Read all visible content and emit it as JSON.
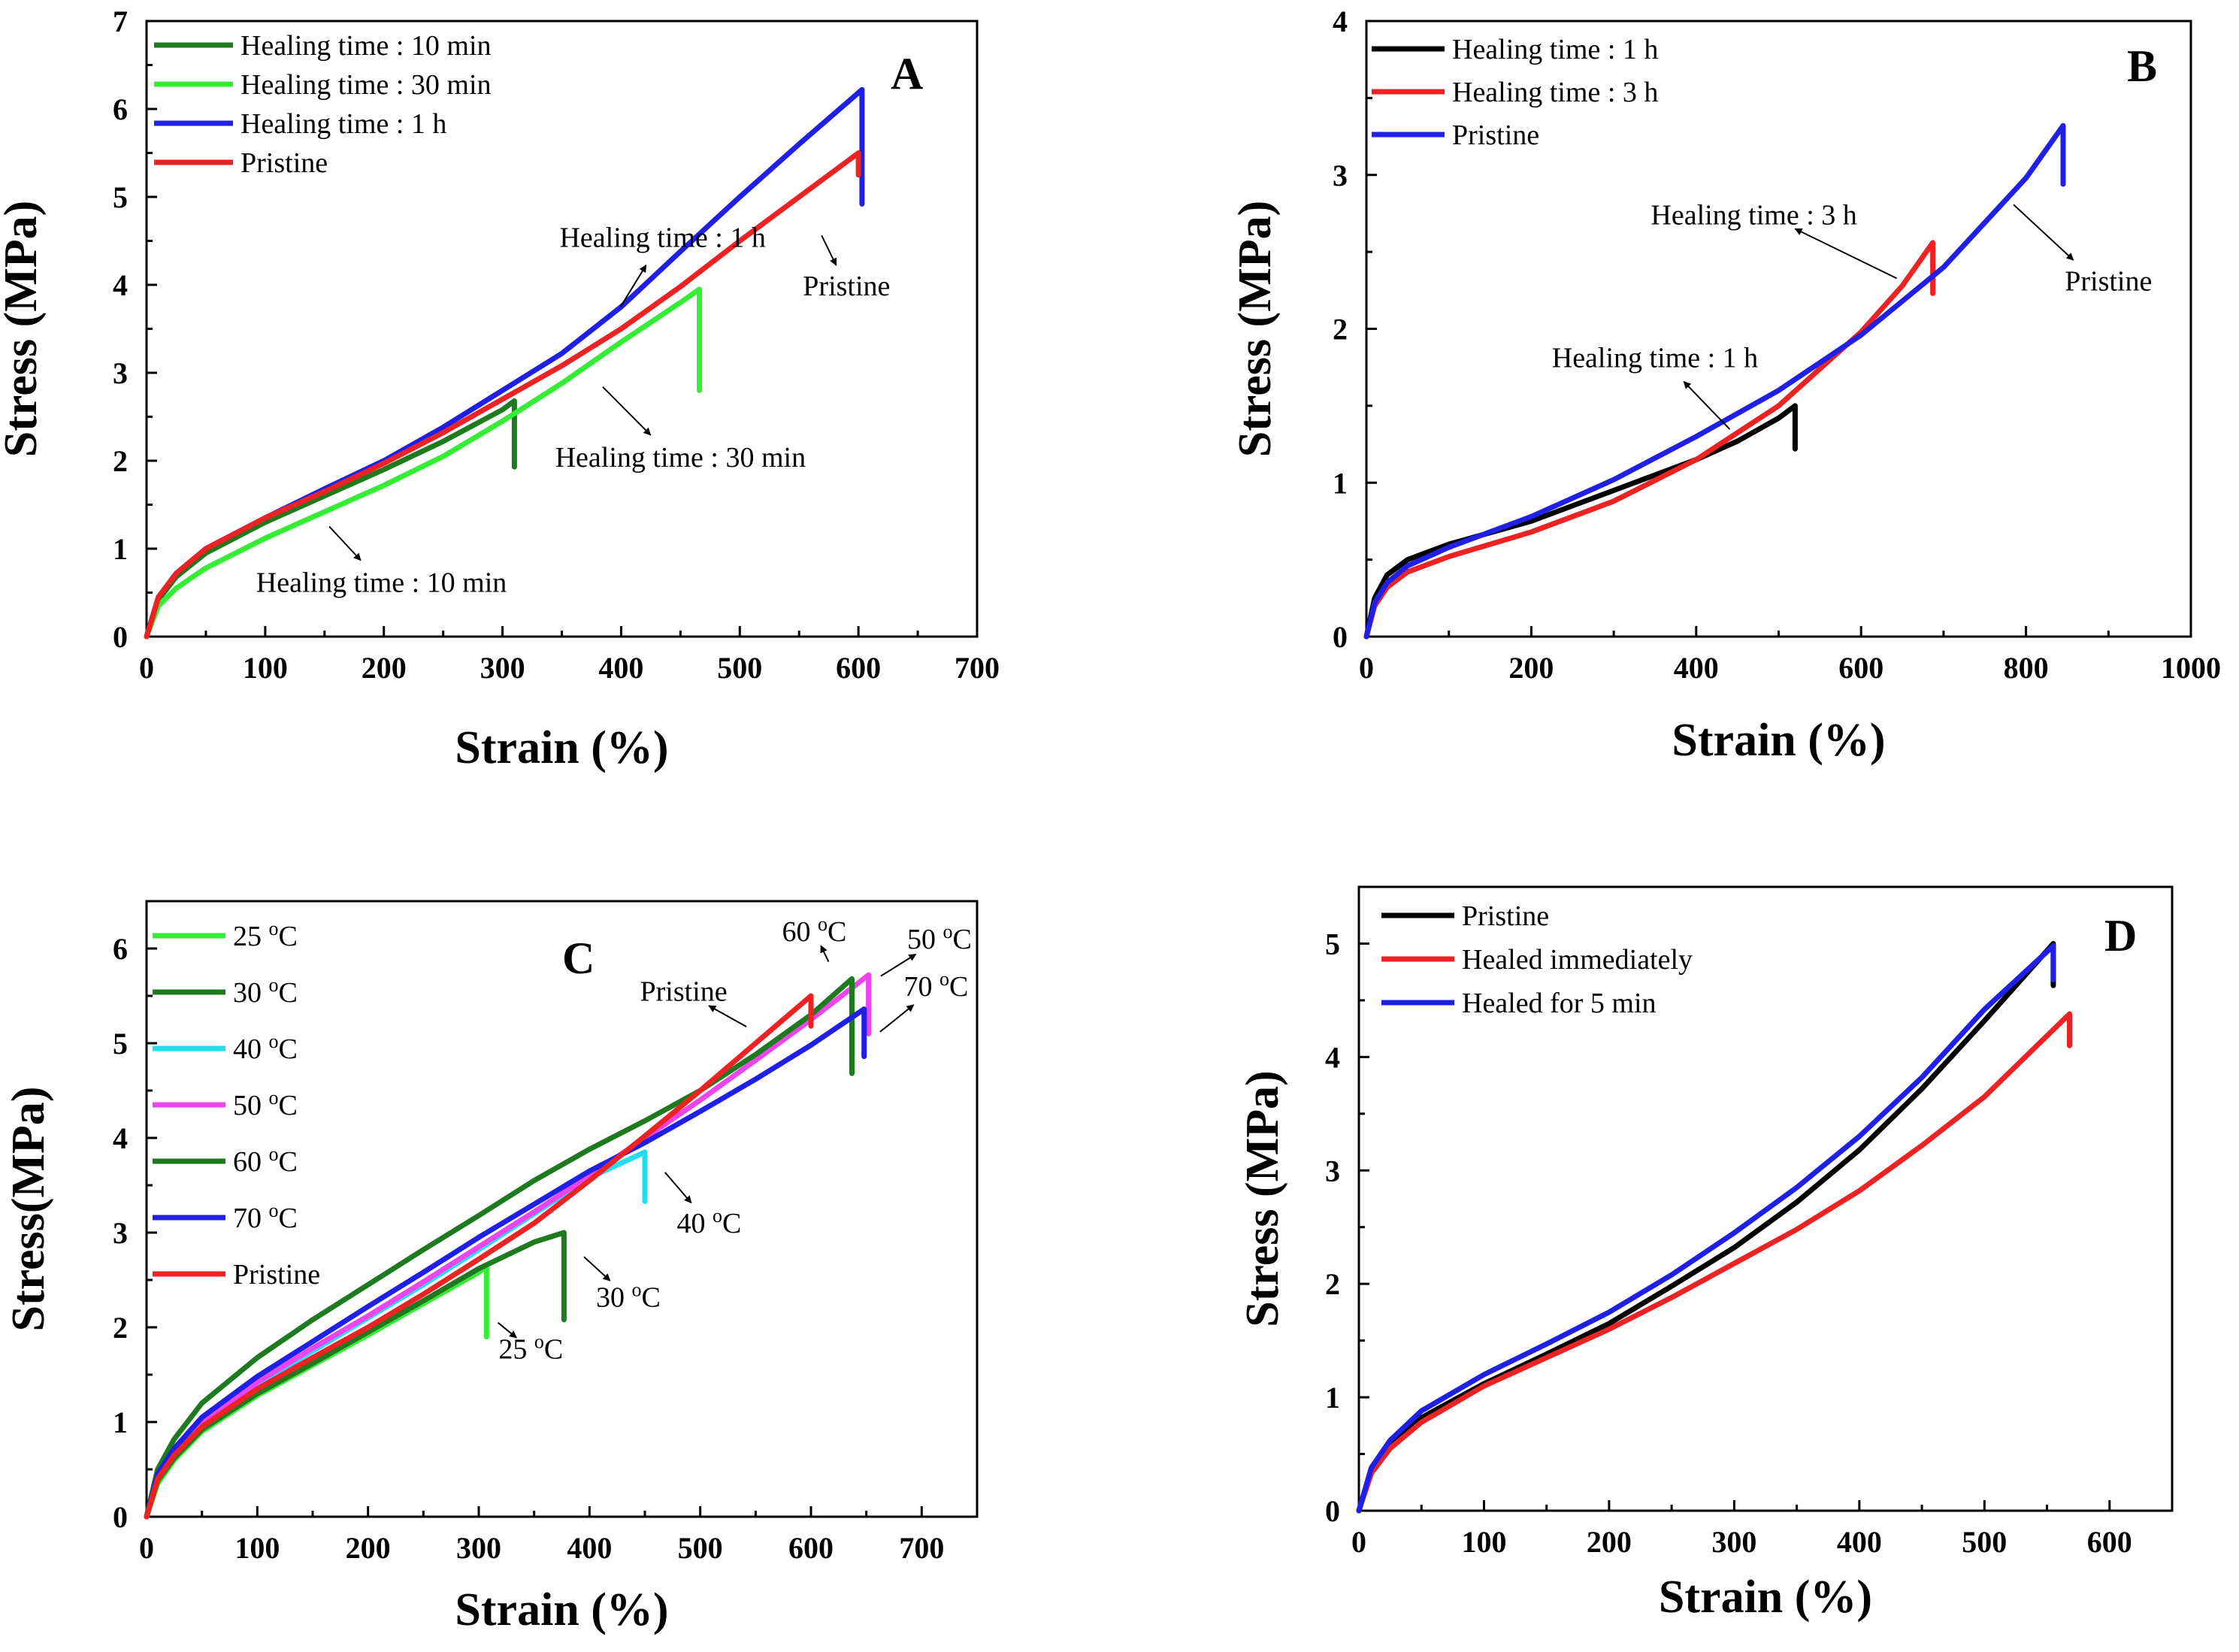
{
  "chart_data": [
    {
      "type": "line",
      "panel": "A",
      "xlabel": "Strain (%)",
      "ylabel": "Stress (MPa)",
      "xlim": [
        0,
        700
      ],
      "ylim": [
        0,
        7
      ],
      "xticks": [
        0,
        100,
        200,
        300,
        400,
        500,
        600,
        700
      ],
      "yticks": [
        0,
        1,
        2,
        3,
        4,
        5,
        6,
        7
      ],
      "legend_position": "top-left",
      "series": [
        {
          "name": "Healing time : 10 min",
          "color": "#1e7a1e",
          "break_drop": 0.75,
          "x": [
            0,
            10,
            25,
            50,
            100,
            150,
            200,
            250,
            300,
            310
          ],
          "y": [
            0,
            0.42,
            0.68,
            0.95,
            1.3,
            1.6,
            1.9,
            2.22,
            2.58,
            2.68
          ]
        },
        {
          "name": "Healing time : 30 min",
          "color": "#33ee33",
          "break_drop": 1.15,
          "x": [
            0,
            10,
            25,
            50,
            100,
            150,
            200,
            250,
            300,
            350,
            400,
            450,
            466
          ],
          "y": [
            0,
            0.35,
            0.55,
            0.78,
            1.12,
            1.42,
            1.72,
            2.05,
            2.45,
            2.88,
            3.35,
            3.8,
            3.95
          ]
        },
        {
          "name": "Healing time : 1 h",
          "color": "#1f1fe8",
          "break_drop": 1.3,
          "x": [
            0,
            10,
            25,
            50,
            100,
            150,
            200,
            250,
            300,
            350,
            400,
            450,
            500,
            550,
            603
          ],
          "y": [
            0,
            0.45,
            0.72,
            1.0,
            1.35,
            1.68,
            2.0,
            2.38,
            2.8,
            3.22,
            3.75,
            4.38,
            5.0,
            5.6,
            6.22
          ]
        },
        {
          "name": "Pristine",
          "color": "#ee2222",
          "break_drop": 0.25,
          "x": [
            0,
            10,
            25,
            50,
            100,
            150,
            200,
            250,
            300,
            350,
            400,
            450,
            500,
            550,
            600
          ],
          "y": [
            0,
            0.45,
            0.72,
            1.0,
            1.35,
            1.65,
            1.97,
            2.32,
            2.7,
            3.08,
            3.5,
            3.98,
            4.5,
            5.0,
            5.5
          ]
        }
      ],
      "annotations": [
        {
          "text": "Healing time : 1 h",
          "x": 435,
          "y": 4.43,
          "points_to": [
            395,
            3.65
          ]
        },
        {
          "text": "Pristine",
          "x": 590,
          "y": 3.88,
          "points_to": [
            565,
            4.67
          ]
        },
        {
          "text": "Healing time : 30 min",
          "x": 450,
          "y": 1.93,
          "points_to": [
            378,
            2.92
          ]
        },
        {
          "text": "Healing time : 10 min",
          "x": 198,
          "y": 0.51,
          "points_to": [
            148,
            1.34
          ]
        }
      ]
    },
    {
      "type": "line",
      "panel": "B",
      "xlabel": "Strain (%)",
      "ylabel": "Stress (MPa)",
      "xlim": [
        0,
        1000
      ],
      "ylim": [
        0,
        4
      ],
      "xticks": [
        0,
        200,
        400,
        600,
        800,
        1000
      ],
      "yticks": [
        0,
        1,
        2,
        3,
        4
      ],
      "legend_position": "top-left",
      "series": [
        {
          "name": "Healing time : 1 h",
          "color": "#000000",
          "break_drop": 0.28,
          "x": [
            0,
            10,
            25,
            50,
            100,
            200,
            300,
            400,
            450,
            500,
            520
          ],
          "y": [
            0,
            0.25,
            0.4,
            0.5,
            0.6,
            0.75,
            0.95,
            1.15,
            1.27,
            1.42,
            1.5
          ]
        },
        {
          "name": "Healing time : 3 h",
          "color": "#ee2222",
          "break_drop": 0.33,
          "x": [
            0,
            10,
            25,
            50,
            100,
            200,
            300,
            400,
            500,
            600,
            650,
            687
          ],
          "y": [
            0,
            0.2,
            0.32,
            0.42,
            0.52,
            0.68,
            0.88,
            1.15,
            1.5,
            1.98,
            2.28,
            2.56
          ]
        },
        {
          "name": "Pristine",
          "color": "#1f1fe8",
          "break_drop": 0.38,
          "x": [
            0,
            10,
            25,
            50,
            100,
            200,
            300,
            400,
            500,
            600,
            700,
            800,
            845
          ],
          "y": [
            0,
            0.22,
            0.35,
            0.46,
            0.58,
            0.78,
            1.02,
            1.3,
            1.6,
            1.96,
            2.4,
            2.98,
            3.32
          ]
        }
      ],
      "annotations": [
        {
          "text": "Healing time : 3 h",
          "x": 470,
          "y": 2.68,
          "points_to": [
            655,
            2.3
          ]
        },
        {
          "text": "Pristine",
          "x": 900,
          "y": 2.25,
          "points_to": [
            775,
            2.85
          ]
        },
        {
          "text": "Healing time : 1 h",
          "x": 350,
          "y": 1.75,
          "points_to": [
            450,
            1.3
          ]
        }
      ]
    },
    {
      "type": "line",
      "panel": "C",
      "xlabel": "Strain (%)",
      "ylabel": "Stress(MPa)",
      "xlim": [
        0,
        750
      ],
      "ylim": [
        0,
        6.5
      ],
      "xticks": [
        0,
        100,
        200,
        300,
        400,
        500,
        600,
        700
      ],
      "yticks": [
        0,
        1,
        2,
        3,
        4,
        5,
        6
      ],
      "legend_position": "top-left",
      "series": [
        {
          "name": "25 oC",
          "color": "#33ee33",
          "break_drop": 0.75,
          "x": [
            0,
            10,
            25,
            50,
            100,
            150,
            200,
            250,
            300,
            307
          ],
          "y": [
            0,
            0.35,
            0.6,
            0.9,
            1.28,
            1.6,
            1.92,
            2.25,
            2.58,
            2.65
          ]
        },
        {
          "name": "30 oC",
          "color": "#1e7a1e",
          "break_drop": 0.92,
          "x": [
            0,
            10,
            25,
            50,
            100,
            150,
            200,
            250,
            300,
            350,
            377
          ],
          "y": [
            0,
            0.38,
            0.62,
            0.92,
            1.3,
            1.62,
            1.95,
            2.28,
            2.62,
            2.9,
            3.0
          ]
        },
        {
          "name": "40 oC",
          "color": "#22ddee",
          "break_drop": 0.52,
          "x": [
            0,
            10,
            25,
            50,
            100,
            150,
            200,
            250,
            300,
            350,
            400,
            450
          ],
          "y": [
            0,
            0.42,
            0.68,
            1.0,
            1.4,
            1.75,
            2.1,
            2.45,
            2.82,
            3.2,
            3.58,
            3.85
          ]
        },
        {
          "name": "50 oC",
          "color": "#ee44ee",
          "break_drop": 0.62,
          "x": [
            0,
            10,
            25,
            50,
            100,
            150,
            200,
            250,
            300,
            350,
            400,
            450,
            500,
            550,
            600,
            652
          ],
          "y": [
            0,
            0.42,
            0.68,
            1.0,
            1.42,
            1.78,
            2.12,
            2.48,
            2.85,
            3.22,
            3.6,
            4.0,
            4.4,
            4.82,
            5.25,
            5.72
          ]
        },
        {
          "name": "60 oC",
          "color": "#1e7a1e",
          "break_drop": 1.0,
          "x": [
            0,
            10,
            25,
            50,
            100,
            150,
            200,
            250,
            300,
            350,
            400,
            450,
            500,
            550,
            600,
            637
          ],
          "y": [
            0,
            0.5,
            0.82,
            1.2,
            1.68,
            2.08,
            2.45,
            2.82,
            3.18,
            3.55,
            3.88,
            4.18,
            4.5,
            4.88,
            5.3,
            5.68
          ]
        },
        {
          "name": "70 oC",
          "color": "#1f1fe8",
          "break_drop": 0.5,
          "x": [
            0,
            10,
            25,
            50,
            100,
            150,
            200,
            250,
            300,
            350,
            400,
            450,
            500,
            550,
            600,
            648
          ],
          "y": [
            0,
            0.45,
            0.72,
            1.05,
            1.48,
            1.85,
            2.22,
            2.58,
            2.95,
            3.3,
            3.65,
            3.95,
            4.28,
            4.62,
            4.98,
            5.36
          ]
        },
        {
          "name": "Pristine",
          "color": "#ee2222",
          "break_drop": 0.32,
          "x": [
            0,
            10,
            25,
            50,
            100,
            150,
            200,
            250,
            300,
            350,
            400,
            450,
            500,
            550,
            600
          ],
          "y": [
            0,
            0.4,
            0.65,
            0.95,
            1.35,
            1.68,
            2.0,
            2.35,
            2.72,
            3.1,
            3.55,
            4.02,
            4.5,
            5.0,
            5.5
          ]
        }
      ],
      "annotations": [
        {
          "text": "Pristine",
          "x": 485,
          "y": 5.45,
          "points_to": [
            550,
            5.12
          ]
        },
        {
          "text": "60 oC",
          "x": 603,
          "y": 6.08,
          "points_to": [
            620,
            5.76
          ]
        },
        {
          "text": "50 oC",
          "x": 716,
          "y": 6.0,
          "points_to": [
            655,
            5.65
          ]
        },
        {
          "text": "70 oC",
          "x": 713,
          "y": 5.5,
          "points_to": [
            655,
            5.05
          ]
        },
        {
          "text": "40 oC",
          "x": 508,
          "y": 3.0,
          "points_to": [
            462,
            3.72
          ]
        },
        {
          "text": "30 oC",
          "x": 435,
          "y": 2.22,
          "points_to": [
            388,
            2.82
          ]
        },
        {
          "text": "25 oC",
          "x": 347,
          "y": 1.67,
          "points_to": [
            310,
            2.12
          ]
        }
      ]
    },
    {
      "type": "line",
      "panel": "D",
      "xlabel": "Strain (%)",
      "ylabel": "Stress (MPa)",
      "xlim": [
        0,
        650
      ],
      "ylim": [
        0,
        5.5
      ],
      "xticks": [
        0,
        100,
        200,
        300,
        400,
        500,
        600
      ],
      "yticks": [
        0,
        1,
        2,
        3,
        4,
        5
      ],
      "legend_position": "top-left",
      "series": [
        {
          "name": "Pristine",
          "color": "#000000",
          "break_drop": 0.37,
          "x": [
            0,
            10,
            25,
            50,
            100,
            150,
            200,
            250,
            300,
            350,
            400,
            450,
            500,
            555
          ],
          "y": [
            0,
            0.35,
            0.58,
            0.82,
            1.12,
            1.38,
            1.65,
            1.98,
            2.32,
            2.72,
            3.18,
            3.72,
            4.32,
            5.0
          ]
        },
        {
          "name": "Healed immediately",
          "color": "#ee2222",
          "break_drop": 0.28,
          "x": [
            0,
            10,
            25,
            50,
            100,
            150,
            200,
            250,
            300,
            350,
            400,
            450,
            500,
            568
          ],
          "y": [
            0,
            0.33,
            0.55,
            0.78,
            1.1,
            1.35,
            1.6,
            1.88,
            2.18,
            2.48,
            2.82,
            3.22,
            3.65,
            4.38
          ]
        },
        {
          "name": "Healed for 5 min",
          "color": "#1f1fe8",
          "break_drop": 0.3,
          "x": [
            0,
            10,
            25,
            50,
            100,
            150,
            200,
            250,
            300,
            350,
            400,
            450,
            500,
            555
          ],
          "y": [
            0,
            0.38,
            0.62,
            0.88,
            1.2,
            1.47,
            1.75,
            2.08,
            2.45,
            2.85,
            3.3,
            3.82,
            4.42,
            4.98
          ]
        }
      ],
      "annotations": []
    }
  ]
}
